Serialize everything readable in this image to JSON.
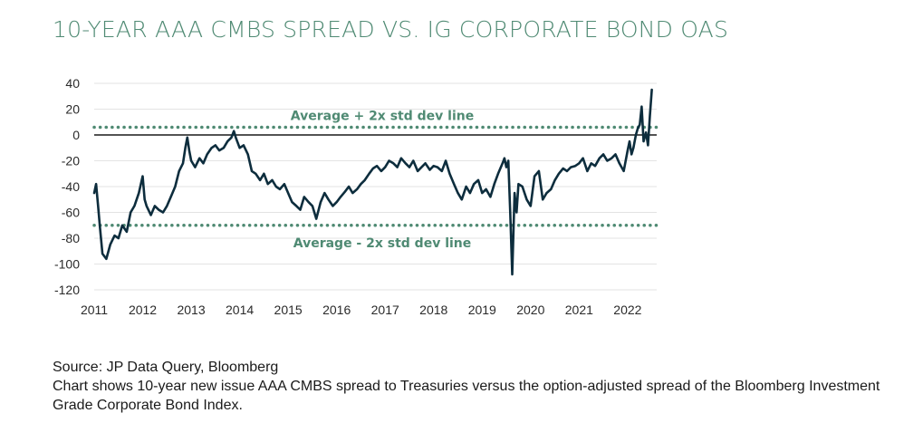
{
  "chart_data": {
    "type": "line",
    "title": "10-YEAR AAA CMBS SPREAD VS. IG CORPORATE BOND OAS",
    "xlabel": "",
    "ylabel": "",
    "xlim": [
      2011.0,
      2022.6
    ],
    "ylim": [
      -120,
      40
    ],
    "x_ticks": [
      "2011",
      "2012",
      "2013",
      "2014",
      "2015",
      "2016",
      "2017",
      "2018",
      "2019",
      "2020",
      "2021",
      "2022"
    ],
    "y_ticks": [
      40,
      20,
      0,
      -20,
      -40,
      -60,
      -80,
      -100,
      -120
    ],
    "grid": "horizontal",
    "series": [
      {
        "color": "#0d2d3d",
        "x": [
          2011.0,
          2011.04,
          2011.08,
          2011.12,
          2011.17,
          2011.25,
          2011.33,
          2011.42,
          2011.5,
          2011.58,
          2011.67,
          2011.75,
          2011.83,
          2011.92,
          2012.0,
          2012.04,
          2012.08,
          2012.17,
          2012.25,
          2012.33,
          2012.42,
          2012.5,
          2012.58,
          2012.67,
          2012.75,
          2012.83,
          2012.88,
          2012.92,
          2012.96,
          2013.0,
          2013.08,
          2013.17,
          2013.25,
          2013.33,
          2013.42,
          2013.5,
          2013.58,
          2013.67,
          2013.75,
          2013.83,
          2013.88,
          2013.92,
          2014.0,
          2014.08,
          2014.17,
          2014.25,
          2014.33,
          2014.42,
          2014.5,
          2014.58,
          2014.67,
          2014.75,
          2014.83,
          2014.92,
          2015.0,
          2015.08,
          2015.17,
          2015.25,
          2015.33,
          2015.42,
          2015.5,
          2015.58,
          2015.67,
          2015.75,
          2015.83,
          2015.92,
          2016.0,
          2016.08,
          2016.17,
          2016.25,
          2016.33,
          2016.42,
          2016.5,
          2016.58,
          2016.67,
          2016.75,
          2016.83,
          2016.92,
          2017.0,
          2017.08,
          2017.17,
          2017.25,
          2017.33,
          2017.42,
          2017.5,
          2017.58,
          2017.67,
          2017.75,
          2017.83,
          2017.92,
          2018.0,
          2018.08,
          2018.17,
          2018.25,
          2018.33,
          2018.42,
          2018.5,
          2018.58,
          2018.67,
          2018.75,
          2018.83,
          2018.92,
          2019.0,
          2019.08,
          2019.17,
          2019.25,
          2019.33,
          2019.42,
          2019.46,
          2019.5,
          2019.54,
          2019.58,
          2019.62,
          2019.67,
          2019.71,
          2019.75,
          2019.83,
          2019.92,
          2020.0,
          2020.08,
          2020.17,
          2020.25,
          2020.33,
          2020.42,
          2020.5,
          2020.58,
          2020.67,
          2020.75,
          2020.83,
          2020.92,
          2021.0,
          2021.08,
          2021.17,
          2021.25,
          2021.33,
          2021.42,
          2021.5,
          2021.58,
          2021.67,
          2021.75,
          2021.83,
          2021.92,
          2022.0,
          2022.04,
          2022.08,
          2022.12,
          2022.17,
          2022.21,
          2022.25,
          2022.29,
          2022.33,
          2022.38,
          2022.42,
          2022.46,
          2022.5
        ],
        "y": [
          -45,
          -38,
          -55,
          -72,
          -92,
          -96,
          -85,
          -78,
          -80,
          -70,
          -75,
          -60,
          -55,
          -45,
          -32,
          -50,
          -55,
          -62,
          -55,
          -58,
          -60,
          -55,
          -48,
          -40,
          -28,
          -22,
          -10,
          -2,
          -12,
          -20,
          -25,
          -18,
          -22,
          -15,
          -10,
          -8,
          -12,
          -10,
          -5,
          -2,
          3,
          -2,
          -10,
          -8,
          -15,
          -28,
          -30,
          -35,
          -30,
          -38,
          -35,
          -40,
          -42,
          -38,
          -45,
          -52,
          -55,
          -58,
          -48,
          -52,
          -55,
          -65,
          -52,
          -45,
          -50,
          -55,
          -52,
          -48,
          -44,
          -40,
          -45,
          -42,
          -38,
          -35,
          -30,
          -26,
          -24,
          -28,
          -25,
          -20,
          -22,
          -25,
          -18,
          -22,
          -25,
          -20,
          -28,
          -25,
          -22,
          -27,
          -24,
          -25,
          -28,
          -20,
          -30,
          -38,
          -45,
          -50,
          -40,
          -45,
          -38,
          -35,
          -45,
          -42,
          -48,
          -38,
          -30,
          -22,
          -18,
          -25,
          -20,
          -60,
          -108,
          -45,
          -60,
          -38,
          -40,
          -50,
          -55,
          -32,
          -28,
          -50,
          -45,
          -42,
          -35,
          -30,
          -26,
          -28,
          -25,
          -24,
          -22,
          -18,
          -28,
          -22,
          -24,
          -18,
          -15,
          -20,
          -18,
          -15,
          -22,
          -28,
          -12,
          -5,
          -15,
          -10,
          0,
          5,
          8,
          22,
          -5,
          2,
          -8,
          15,
          35
        ]
      }
    ],
    "reference_lines": [
      {
        "y": 6,
        "style": "dotted",
        "label": "Average + 2x std dev line"
      },
      {
        "y": -70,
        "style": "dotted",
        "label": "Average - 2x std dev line"
      },
      {
        "y": 0,
        "style": "solid",
        "label": ""
      }
    ]
  },
  "source": "Source: JP Data Query, Bloomberg",
  "caption": "Chart shows 10-year new issue AAA CMBS spread to Treasuries versus the option-adjusted spread of the Bloomberg Investment Grade Corporate Bond Index."
}
